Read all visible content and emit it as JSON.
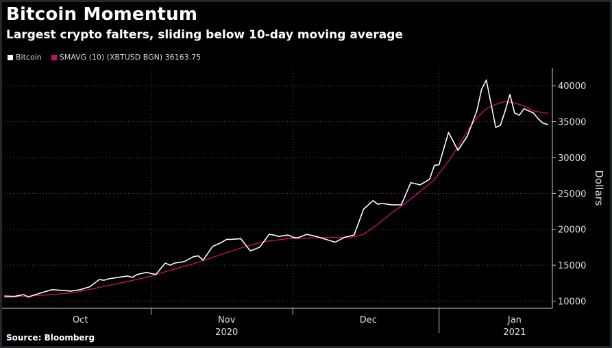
{
  "chart_data": {
    "type": "line",
    "title": "Bitcoin Momentum",
    "subtitle": "Largest crypto falters, sliding below 10-day moving average",
    "ylabel": "Dollars",
    "xlabel": "",
    "ylim": [
      9000,
      42500
    ],
    "yticks": [
      10000,
      15000,
      20000,
      25000,
      30000,
      35000,
      40000
    ],
    "ytick_labels": [
      "10000",
      "15000",
      "20000",
      "25000",
      "30000",
      "35000",
      "40000"
    ],
    "xticks": [
      {
        "label": "Oct",
        "x": 16
      },
      {
        "label": "Nov",
        "x": 47
      },
      {
        "label": "Dec",
        "x": 77
      },
      {
        "label": "Jan",
        "x": 108
      }
    ],
    "month_dividers": [
      31,
      61,
      92
    ],
    "xlim": [
      0,
      116
    ],
    "year_labels": [
      {
        "label": "2020",
        "x": 47
      },
      {
        "label": "2021",
        "x": 108
      }
    ],
    "legend": {
      "bitcoin_label": "Bitcoin",
      "smavg_label": "SMAVG (10) (XBTUSD BGN) 36163.75"
    },
    "colors": {
      "bitcoin": "#ffffff",
      "smavg": "#c0106e",
      "grid": "#5a5a5a",
      "background": "#000000"
    },
    "series": [
      {
        "name": "Bitcoin",
        "x": [
          0,
          2,
          4,
          5,
          6,
          8,
          10,
          12,
          14,
          16,
          18,
          20,
          21,
          22,
          24,
          26,
          27,
          28,
          30,
          32,
          34,
          35,
          36,
          38,
          40,
          41,
          42,
          44,
          46,
          47,
          48,
          50,
          52,
          54,
          56,
          57,
          58,
          60,
          61,
          62,
          64,
          66,
          68,
          70,
          72,
          74,
          76,
          78,
          79,
          80,
          82,
          84,
          86,
          88,
          90,
          91,
          92,
          94,
          96,
          97,
          98,
          100,
          101,
          102,
          103,
          104,
          105,
          106,
          107,
          108,
          109,
          110,
          111,
          112,
          113,
          114,
          115
        ],
        "values": [
          10700,
          10650,
          10900,
          10550,
          10800,
          11200,
          11600,
          11500,
          11400,
          11600,
          12000,
          13000,
          12900,
          13100,
          13300,
          13500,
          13300,
          13700,
          14000,
          13700,
          15300,
          15000,
          15300,
          15500,
          16200,
          16300,
          15700,
          17600,
          18200,
          18600,
          18600,
          18700,
          17000,
          17500,
          19300,
          19200,
          19000,
          19200,
          18900,
          18800,
          19300,
          19000,
          18600,
          18200,
          18900,
          19200,
          22800,
          24000,
          23500,
          23600,
          23400,
          23400,
          26500,
          26200,
          27000,
          28900,
          29000,
          33500,
          31000,
          32000,
          33000,
          36500,
          39500,
          40800,
          37500,
          34200,
          34500,
          36500,
          38800,
          36200,
          35900,
          36800,
          36500,
          36200,
          35400,
          34800,
          34600
        ]
      },
      {
        "name": "SMAVG (10) (XBTUSD BGN)",
        "x": [
          0,
          5,
          10,
          15,
          20,
          25,
          30,
          35,
          40,
          45,
          50,
          55,
          60,
          65,
          70,
          73,
          76,
          79,
          82,
          85,
          88,
          91,
          94,
          96,
          98,
          100,
          102,
          104,
          106,
          108,
          110,
          112,
          115
        ],
        "values": [
          10500,
          10700,
          10900,
          11200,
          11900,
          12600,
          13300,
          14300,
          15200,
          16300,
          17400,
          18300,
          18700,
          18800,
          18900,
          18800,
          19300,
          20700,
          22300,
          23700,
          25300,
          26900,
          29500,
          31500,
          33700,
          35500,
          36800,
          37400,
          37800,
          37600,
          37200,
          36500,
          36164
        ]
      }
    ],
    "source": "Source: Bloomberg"
  }
}
